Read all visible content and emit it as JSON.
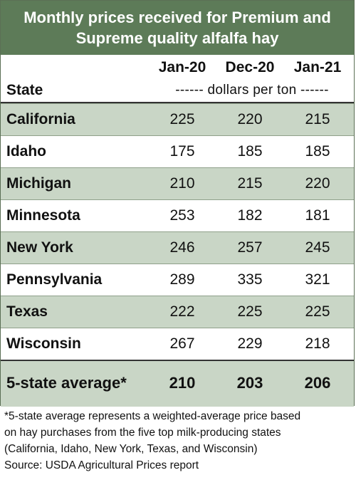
{
  "title": {
    "line1": "Monthly prices received for Premium and",
    "line2": "Supreme quality alfalfa hay"
  },
  "columns": [
    "Jan-20",
    "Dec-20",
    "Jan-21"
  ],
  "state_header": "State",
  "units_label": "------ dollars per ton ------",
  "rows": [
    {
      "state": "California",
      "values": [
        "225",
        "220",
        "215"
      ]
    },
    {
      "state": "Idaho",
      "values": [
        "175",
        "185",
        "185"
      ]
    },
    {
      "state": "Michigan",
      "values": [
        "210",
        "215",
        "220"
      ]
    },
    {
      "state": "Minnesota",
      "values": [
        "253",
        "182",
        "181"
      ]
    },
    {
      "state": "New York",
      "values": [
        "246",
        "257",
        "245"
      ]
    },
    {
      "state": "Pennsylvania",
      "values": [
        "289",
        "335",
        "321"
      ]
    },
    {
      "state": "Texas",
      "values": [
        "222",
        "225",
        "225"
      ]
    },
    {
      "state": "Wisconsin",
      "values": [
        "267",
        "229",
        "218"
      ]
    }
  ],
  "average": {
    "label": "5-state average*",
    "values": [
      "210",
      "203",
      "206"
    ]
  },
  "footnote": {
    "line1": "*5-state average represents  a weighted-average price based",
    "line2": "on hay purchases from the five top milk-producing states",
    "line3": "(California, Idaho, New York, Texas, and Wisconsin)",
    "line4": "Source: USDA Agricultural Prices report"
  },
  "colors": {
    "header_green": "#5d7b58",
    "row_shade": "#c9d6c6"
  }
}
